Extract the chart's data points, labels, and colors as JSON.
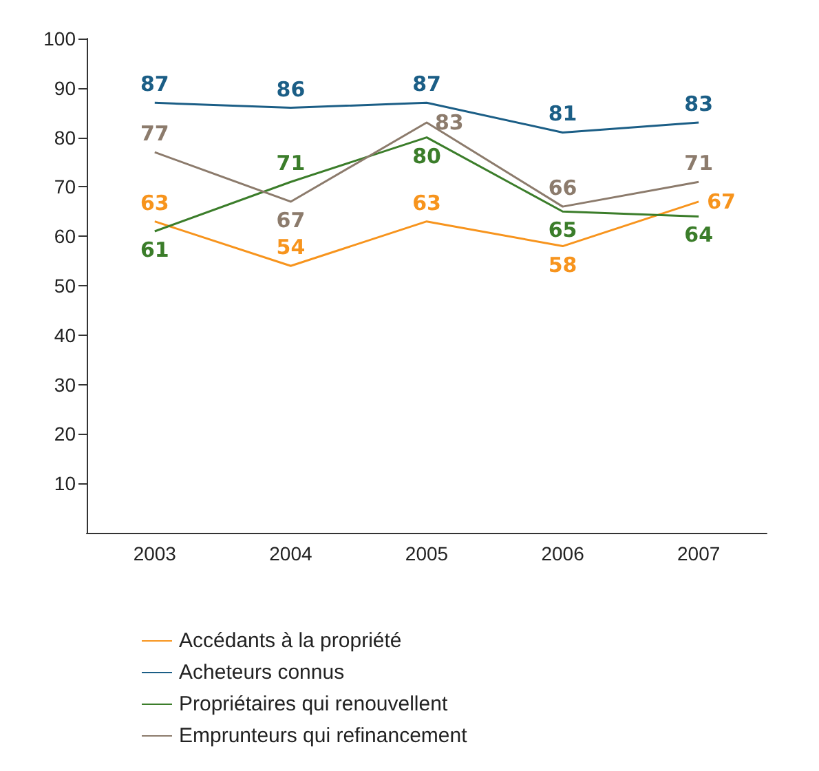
{
  "chart_data": {
    "type": "line",
    "categories": [
      "2003",
      "2004",
      "2005",
      "2006",
      "2007"
    ],
    "series": [
      {
        "name": "Accédants à la propriété",
        "color": "#f7941d",
        "values": [
          63,
          54,
          63,
          58,
          67
        ]
      },
      {
        "name": "Acheteurs connus",
        "color": "#1b5e86",
        "values": [
          87,
          86,
          87,
          81,
          83
        ]
      },
      {
        "name": "Propriétaires qui renouvellent",
        "color": "#3b7d2a",
        "values": [
          61,
          71,
          80,
          65,
          64
        ]
      },
      {
        "name": "Emprunteurs qui refinancement",
        "color": "#8c7b6c",
        "values": [
          77,
          67,
          83,
          66,
          71
        ]
      }
    ],
    "ylim": [
      0,
      100
    ],
    "yticks": [
      10,
      20,
      30,
      40,
      50,
      60,
      70,
      80,
      90,
      100
    ],
    "grid": false,
    "legend": "bottom",
    "marker": "none",
    "line_style": "solid",
    "data_labels": true
  }
}
